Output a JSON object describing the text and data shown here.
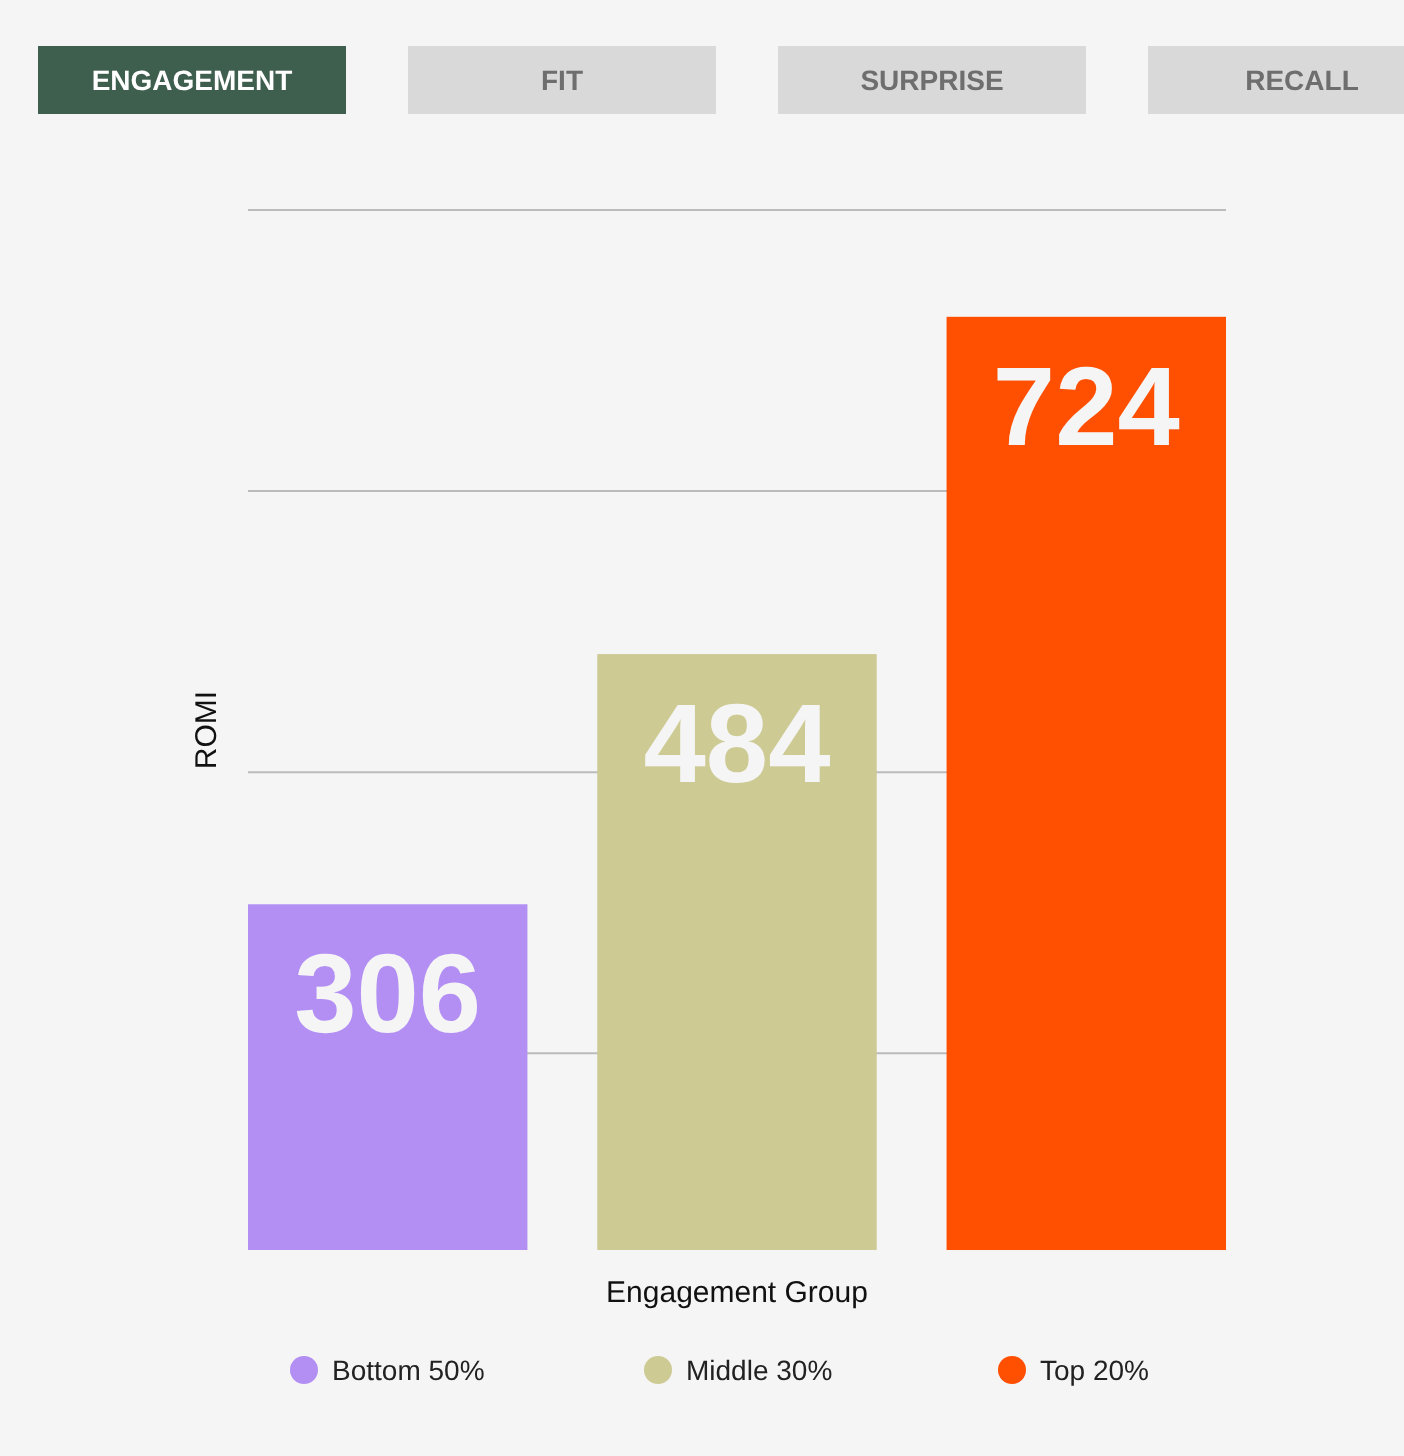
{
  "chart_data": {
    "type": "bar",
    "xlabel": "Engagement Group",
    "ylabel": "ROMI",
    "categories": [
      null,
      null,
      null
    ],
    "stacked": true,
    "series": [
      {
        "name": "Bottom 50%",
        "color": "#b38ff3",
        "values": [
          306,
          null,
          null
        ]
      },
      {
        "name": "Middle 30%",
        "color": "#cdca93",
        "values": [
          null,
          484,
          null
        ]
      },
      {
        "name": "Top 20%",
        "color": "#ff4f00",
        "values": [
          null,
          null,
          724
        ]
      }
    ],
    "ylim": [
      60,
      800
    ],
    "yticks": [
      {
        "value": 200,
        "label": null
      },
      {
        "value": 400,
        "label": null
      },
      {
        "value": 600,
        "label": null
      },
      {
        "value": 800,
        "label": null
      }
    ],
    "grid": "y",
    "data_labels": true,
    "legend": "bottom",
    "annotations": [
      "ENGAGEMENT",
      "FIT",
      "SURPRISE",
      "RECALL"
    ]
  }
}
